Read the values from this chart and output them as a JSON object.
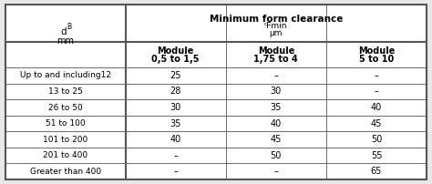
{
  "title_main": "Minimum form clearance",
  "title_sub1": "ᶜFmin",
  "title_sub2": "μm",
  "col_headers": [
    "Module\n0,5 to 1,5",
    "Module\n1,75 to 4",
    "Module\n5 to 10"
  ],
  "row_labels": [
    "Up to and including12",
    "13 to 25",
    "26 to 50",
    "51 to 100",
    "101 to 200",
    "201 to 400",
    "Greater than 400"
  ],
  "data": [
    [
      "25",
      "–",
      "–"
    ],
    [
      "28",
      "30",
      "–"
    ],
    [
      "30",
      "35",
      "40"
    ],
    [
      "35",
      "40",
      "45"
    ],
    [
      "40",
      "45",
      "50"
    ],
    [
      "–",
      "50",
      "55"
    ],
    [
      "–",
      "–",
      "65"
    ]
  ],
  "bg_color": "#ffffff",
  "outer_bg": "#e8e8e8",
  "line_color": "#555555",
  "text_color": "#000000",
  "thick_lw": 1.5,
  "thin_lw": 0.6
}
